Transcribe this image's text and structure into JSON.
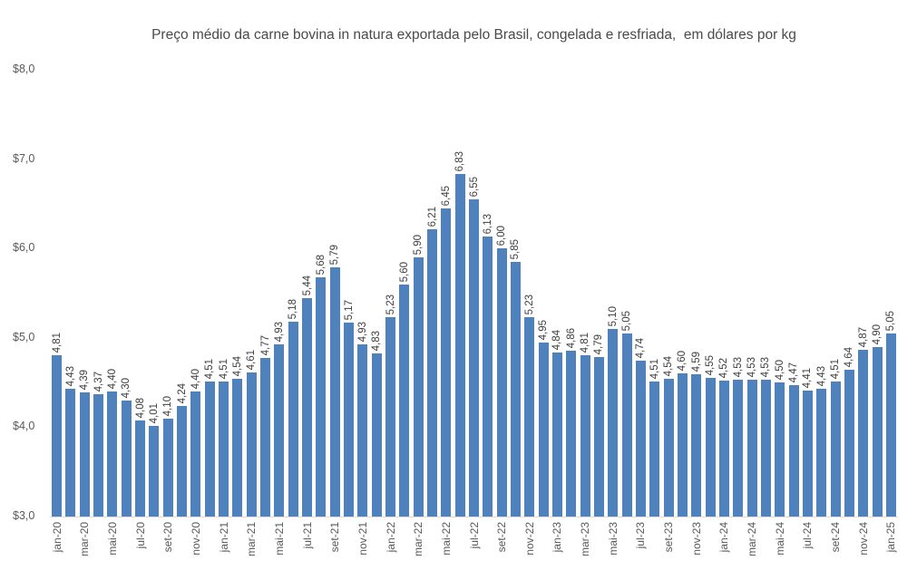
{
  "colors": {
    "bar": "#4F81BD",
    "title_text": "#4a4a4a",
    "axis_text": "#595959",
    "label_text": "#404040",
    "axis_line": "#d9d9d9"
  },
  "chart_data": {
    "type": "bar",
    "title": "Preço médio da carne bovina in natura exportada pelo Brasil, congelada e resfriada,  em dólares por kg",
    "xlabel": "",
    "ylabel": "",
    "grid": false,
    "legend": false,
    "decimal_separator": ",",
    "ylim": [
      3.0,
      8.0
    ],
    "y_tick_values": [
      3.0,
      4.0,
      5.0,
      6.0,
      7.0,
      8.0
    ],
    "y_tick_labels": [
      "$3,0",
      "$4,0",
      "$5,0",
      "$6,0",
      "$7,0",
      "$8,0"
    ],
    "x_tick_every": 2,
    "x_tick_labels_shown": [
      "jan-20",
      "mar-20",
      "mai-20",
      "jul-20",
      "set-20",
      "nov-20",
      "jan-21",
      "mar-21",
      "mai-21",
      "jul-21",
      "set-21",
      "nov-21",
      "jan-22",
      "mar-22",
      "mai-22",
      "jul-22",
      "set-22",
      "nov-22",
      "jan-23",
      "mar-23",
      "mai-23",
      "jul-23",
      "set-23",
      "nov-23",
      "jan-24",
      "mar-24",
      "mai-24",
      "jul-24",
      "set-24",
      "nov-24",
      "jan-25"
    ],
    "categories": [
      "jan-20",
      "fev-20",
      "mar-20",
      "abr-20",
      "mai-20",
      "jun-20",
      "jul-20",
      "ago-20",
      "set-20",
      "out-20",
      "nov-20",
      "dez-20",
      "jan-21",
      "fev-21",
      "mar-21",
      "abr-21",
      "mai-21",
      "jun-21",
      "jul-21",
      "ago-21",
      "set-21",
      "out-21",
      "nov-21",
      "dez-21",
      "jan-22",
      "fev-22",
      "mar-22",
      "abr-22",
      "mai-22",
      "jun-22",
      "jul-22",
      "ago-22",
      "set-22",
      "out-22",
      "nov-22",
      "dez-22",
      "jan-23",
      "fev-23",
      "mar-23",
      "abr-23",
      "mai-23",
      "jun-23",
      "jul-23",
      "ago-23",
      "set-23",
      "out-23",
      "nov-23",
      "dez-23",
      "jan-24",
      "fev-24",
      "mar-24",
      "abr-24",
      "mai-24",
      "jun-24",
      "jul-24",
      "ago-24",
      "set-24",
      "out-24",
      "nov-24",
      "dez-24",
      "jan-25"
    ],
    "values": [
      4.81,
      4.43,
      4.39,
      4.37,
      4.4,
      4.3,
      4.08,
      4.01,
      4.1,
      4.24,
      4.4,
      4.51,
      4.51,
      4.54,
      4.61,
      4.77,
      4.93,
      5.18,
      5.44,
      5.68,
      5.79,
      5.17,
      4.93,
      4.83,
      5.23,
      5.6,
      5.9,
      6.21,
      6.45,
      6.83,
      6.55,
      6.13,
      6.0,
      5.85,
      5.23,
      4.95,
      4.84,
      4.86,
      4.81,
      4.79,
      5.1,
      5.05,
      4.74,
      4.51,
      4.54,
      4.6,
      4.59,
      4.55,
      4.52,
      4.53,
      4.53,
      4.53,
      4.5,
      4.47,
      4.41,
      4.43,
      4.51,
      4.64,
      4.87,
      4.9,
      5.05
    ],
    "value_labels": [
      "4,81",
      "4,43",
      "4,39",
      "4,37",
      "4,40",
      "4,30",
      "4,08",
      "4,01",
      "4,10",
      "4,24",
      "4,40",
      "4,51",
      "4,51",
      "4,54",
      "4,61",
      "4,77",
      "4,93",
      "5,18",
      "5,44",
      "5,68",
      "5,79",
      "5,17",
      "4,93",
      "4,83",
      "5,23",
      "5,60",
      "5,90",
      "6,21",
      "6,45",
      "6,83",
      "6,55",
      "6,13",
      "6,00",
      "5,85",
      "5,23",
      "4,95",
      "4,84",
      "4,86",
      "4,81",
      "4,79",
      "5,10",
      "5,05",
      "4,74",
      "4,51",
      "4,54",
      "4,60",
      "4,59",
      "4,55",
      "4,52",
      "4,53",
      "4,53",
      "4,53",
      "4,50",
      "4,47",
      "4,41",
      "4,43",
      "4,51",
      "4,64",
      "4,87",
      "4,90",
      "5,05"
    ]
  }
}
